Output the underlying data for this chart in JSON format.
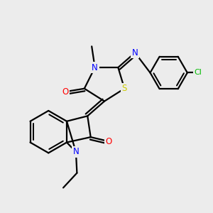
{
  "background_color": "#ececec",
  "bond_color": "#000000",
  "atom_colors": {
    "N": "#0000ff",
    "O": "#ff0000",
    "S": "#cccc00",
    "Cl": "#00bb00",
    "C": "#000000"
  },
  "figsize": [
    3.0,
    3.0
  ],
  "dpi": 100
}
